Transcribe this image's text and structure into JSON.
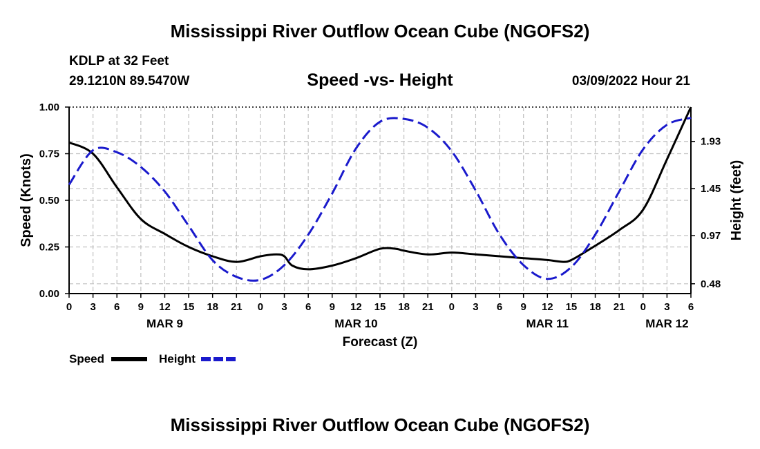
{
  "header": {
    "title": "Mississippi River Outflow Ocean Cube (NGOFS2)",
    "station": "KDLP at 32 Feet",
    "coords": "29.1210N  89.5470W",
    "subtitle": "Speed -vs- Height",
    "datetime": "03/09/2022 Hour 21"
  },
  "footer": {
    "title": "Mississippi River Outflow Ocean Cube (NGOFS2)"
  },
  "legend": {
    "speed_label": "Speed",
    "height_label": "Height"
  },
  "chart_data": {
    "type": "line",
    "title": "Speed -vs- Height",
    "xlabel": "Forecast (Z)",
    "ylabel": "Speed (Knots)",
    "ylabel_right": "Height (feet)",
    "xlim": [
      0,
      78
    ],
    "ylim": [
      0,
      1
    ],
    "ylim_right": [
      0.38,
      2.28
    ],
    "x_tick_values": [
      0,
      3,
      6,
      9,
      12,
      15,
      18,
      21,
      24,
      27,
      30,
      33,
      36,
      39,
      42,
      45,
      48,
      51,
      54,
      57,
      60,
      63,
      66,
      69,
      72,
      75,
      78
    ],
    "x_tick_labels": [
      "0",
      "3",
      "6",
      "9",
      "12",
      "15",
      "18",
      "21",
      "0",
      "3",
      "6",
      "9",
      "12",
      "15",
      "18",
      "21",
      "0",
      "3",
      "6",
      "9",
      "12",
      "15",
      "18",
      "21",
      "0",
      "3",
      "6"
    ],
    "date_labels": [
      {
        "x": 12,
        "label": "MAR 9"
      },
      {
        "x": 36,
        "label": "MAR 10"
      },
      {
        "x": 60,
        "label": "MAR 11"
      },
      {
        "x": 75,
        "label": "MAR 12"
      }
    ],
    "y_ticks": [
      0,
      0.25,
      0.5,
      0.75,
      1.0
    ],
    "y_tick_labels": [
      "0.00",
      "0.25",
      "0.50",
      "0.75",
      "1.00"
    ],
    "y_right_ticks": [
      0.48,
      0.97,
      1.45,
      1.93
    ],
    "y_right_tick_labels": [
      "0.48",
      "0.97",
      "1.45",
      "1.93"
    ],
    "grid": true,
    "colors": {
      "speed": "#000000",
      "height": "#1a1acc",
      "grid": "#c0c0c0"
    },
    "series": [
      {
        "name": "Speed",
        "axis": "left",
        "x": [
          0,
          3,
          6,
          9,
          12,
          15,
          18,
          21,
          24,
          26,
          27,
          28,
          30,
          33,
          36,
          39,
          41,
          42,
          45,
          48,
          51,
          54,
          57,
          60,
          62,
          63,
          65,
          69,
          72,
          75,
          78
        ],
        "y": [
          0.81,
          0.75,
          0.57,
          0.4,
          0.32,
          0.25,
          0.2,
          0.17,
          0.2,
          0.21,
          0.2,
          0.15,
          0.13,
          0.15,
          0.19,
          0.24,
          0.24,
          0.23,
          0.21,
          0.22,
          0.21,
          0.2,
          0.19,
          0.18,
          0.17,
          0.18,
          0.23,
          0.34,
          0.45,
          0.72,
          1.0
        ]
      },
      {
        "name": "Height",
        "axis": "right",
        "x": [
          0,
          3,
          6,
          9,
          12,
          15,
          18,
          21,
          24,
          27,
          30,
          33,
          36,
          39,
          42,
          45,
          48,
          51,
          54,
          57,
          60,
          63,
          66,
          69,
          72,
          75,
          78
        ],
        "y": [
          1.49,
          1.84,
          1.82,
          1.67,
          1.42,
          1.07,
          0.72,
          0.55,
          0.52,
          0.67,
          0.98,
          1.4,
          1.86,
          2.13,
          2.16,
          2.07,
          1.83,
          1.43,
          0.98,
          0.67,
          0.53,
          0.65,
          0.98,
          1.42,
          1.85,
          2.1,
          2.17
        ]
      }
    ]
  }
}
